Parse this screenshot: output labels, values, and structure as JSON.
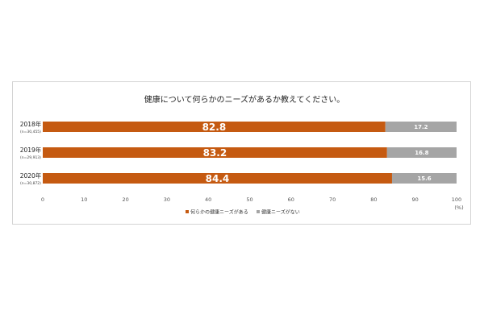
{
  "chart_data": {
    "type": "bar",
    "orientation": "horizontal",
    "stacked": true,
    "title": "健康について何らかのニーズがあるか教えてください。",
    "categories": [
      {
        "year": "2018年",
        "n": "(n=30,455)"
      },
      {
        "year": "2019年",
        "n": "(n=29,913)"
      },
      {
        "year": "2020年",
        "n": "(n=30,872)"
      }
    ],
    "series": [
      {
        "name": "何らかの健康ニーズがある",
        "color": "#c55a11",
        "values": [
          82.8,
          83.2,
          84.4
        ]
      },
      {
        "name": "健康ニーズがない",
        "color": "#a5a5a5",
        "values": [
          17.2,
          16.8,
          15.6
        ]
      }
    ],
    "xlim": [
      0,
      100
    ],
    "xticks": [
      "0",
      "10",
      "20",
      "30",
      "40",
      "50",
      "60",
      "70",
      "80",
      "90",
      "100"
    ],
    "xunit": "(%)",
    "legend_position": "bottom",
    "grid": false
  }
}
